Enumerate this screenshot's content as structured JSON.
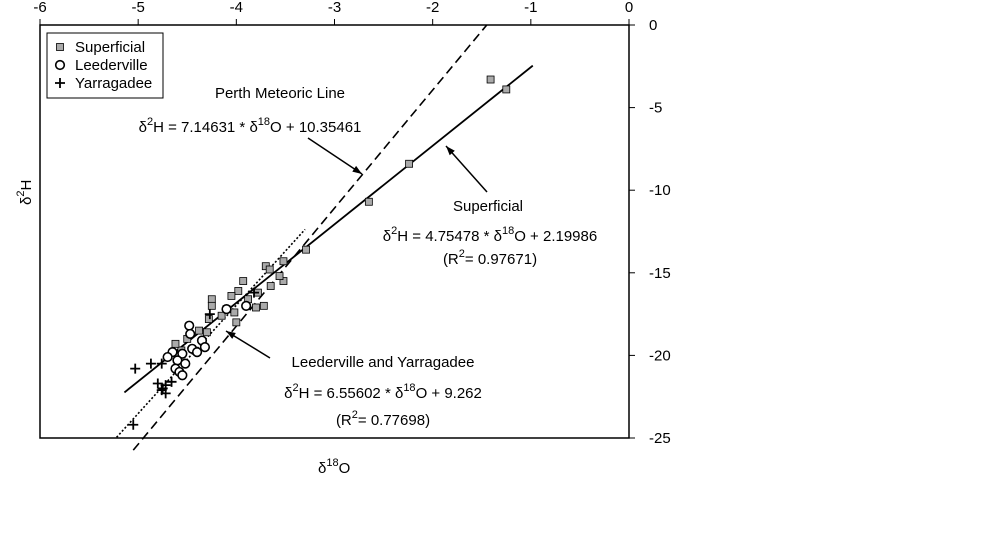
{
  "chart_data": {
    "type": "scatter",
    "xlim": [
      -6,
      0
    ],
    "ylim": [
      -25,
      0
    ],
    "xticks": [
      -6,
      -5,
      -4,
      -3,
      -2,
      -1,
      0
    ],
    "yticks": [
      0,
      -5,
      -10,
      -15,
      -20,
      -25
    ],
    "x_label": [
      {
        "text": "δ"
      },
      {
        "sup": "18"
      },
      {
        "text": "O"
      }
    ],
    "y_label": [
      {
        "text": "δ"
      },
      {
        "sup": "2"
      },
      {
        "text": "H"
      }
    ],
    "legend": "upper left",
    "series": [
      {
        "name": "Superficial",
        "marker": "square",
        "color": "#aaaaaa",
        "x": [
          -1.41,
          -1.25,
          -2.24,
          -2.65,
          -3.29,
          -3.7,
          -3.52,
          -3.66,
          -3.52,
          -3.56,
          -3.93,
          -3.65,
          -3.78,
          -3.98,
          -4.05,
          -3.88,
          -3.72,
          -3.8,
          -4.25,
          -4.25,
          -4.1,
          -4.02,
          -4.0,
          -4.15,
          -4.28,
          -4.3,
          -4.38,
          -4.5,
          -4.56,
          -4.62
        ],
        "values": [
          -3.3,
          -3.9,
          -8.4,
          -10.7,
          -13.6,
          -14.6,
          -14.3,
          -14.8,
          -15.5,
          -15.2,
          -15.5,
          -15.8,
          -16.2,
          -16.1,
          -16.4,
          -16.6,
          -17.0,
          -17.1,
          -16.6,
          -17.0,
          -17.2,
          -17.4,
          -18.0,
          -17.6,
          -17.8,
          -18.6,
          -18.5,
          -19.0,
          -19.7,
          -19.3
        ]
      },
      {
        "name": "Leederville",
        "marker": "circle",
        "color": "#ffffff",
        "x": [
          -4.48,
          -4.47,
          -4.35,
          -4.45,
          -4.55,
          -4.6,
          -4.52,
          -4.62,
          -4.58,
          -4.4,
          -4.32,
          -4.65,
          -4.7,
          -3.9,
          -4.1,
          -4.55
        ],
        "values": [
          -18.2,
          -18.7,
          -19.1,
          -19.6,
          -19.9,
          -20.3,
          -20.5,
          -20.8,
          -21.0,
          -19.8,
          -19.5,
          -19.8,
          -20.1,
          -17.0,
          -17.2,
          -21.2
        ]
      },
      {
        "name": "Yarragadee",
        "marker": "plus",
        "color": "#000000",
        "x": [
          -5.03,
          -4.87,
          -4.76,
          -4.72,
          -4.8,
          -4.76,
          -4.72,
          -4.66,
          -5.05,
          -3.82,
          -4.27,
          -4.75
        ],
        "values": [
          -20.8,
          -20.5,
          -20.5,
          -21.8,
          -21.7,
          -22.1,
          -22.3,
          -21.6,
          -24.2,
          -16.2,
          -17.5,
          -22.0
        ]
      }
    ],
    "fits": [
      {
        "label": "Perth Meteoric Line",
        "style": "dashed",
        "x_range": [
          -5.05,
          -1.45
        ],
        "equation": [
          {
            "text": "δ"
          },
          {
            "sup": "2"
          },
          {
            "text": "H = "
          },
          {
            "slope": 7.14631
          },
          {
            "text": " * δ"
          },
          {
            "sup": "18"
          },
          {
            "text": "O + "
          },
          {
            "intercept": 10.35461
          }
        ]
      },
      {
        "label": "Superficial",
        "style": "solid",
        "x_range": [
          -5.14,
          -0.98
        ],
        "equation": [
          {
            "text": "δ"
          },
          {
            "sup": "2"
          },
          {
            "text": "H = "
          },
          {
            "slope": 4.75478
          },
          {
            "text": " * δ"
          },
          {
            "sup": "18"
          },
          {
            "text": "O + "
          },
          {
            "intercept": 2.19986
          }
        ],
        "r2": [
          {
            "text": "(R"
          },
          {
            "sup": "2"
          },
          {
            "text": "= "
          },
          {
            "r2": 0.97671
          },
          {
            "text": ")"
          }
        ]
      },
      {
        "label": "Leederville and Yarragadee",
        "style": "dotted",
        "x_range": [
          -5.22,
          -3.3
        ],
        "equation": [
          {
            "text": "δ"
          },
          {
            "sup": "2"
          },
          {
            "text": "H = "
          },
          {
            "slope": 6.55602
          },
          {
            "text": " * δ"
          },
          {
            "sup": "18"
          },
          {
            "text": "O + "
          },
          {
            "intercept": 9.262
          }
        ],
        "r2": [
          {
            "text": "(R"
          },
          {
            "sup": "2"
          },
          {
            "text": "= "
          },
          {
            "r2": 0.77698
          },
          {
            "text": ")"
          }
        ]
      }
    ]
  }
}
